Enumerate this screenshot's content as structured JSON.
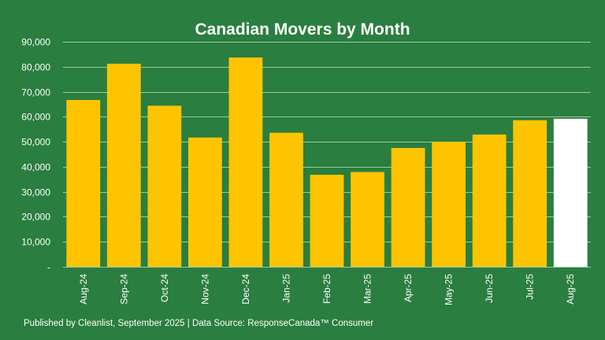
{
  "chart_data": {
    "type": "bar",
    "title": "Canadian Movers by Month",
    "xlabel": "",
    "ylabel": "",
    "categories": [
      "Aug-24",
      "Sep-24",
      "Oct-24",
      "Nov-24",
      "Dec-24",
      "Jan-25",
      "Feb-25",
      "Mar-25",
      "Apr-25",
      "May-25",
      "Jun-25",
      "Jul-25",
      "Aug-25"
    ],
    "values": [
      66700,
      81200,
      64400,
      51700,
      83700,
      53600,
      36800,
      37900,
      47500,
      50000,
      52900,
      58600,
      59200
    ],
    "ylim": [
      0,
      90000
    ],
    "yticks": [
      0,
      10000,
      20000,
      30000,
      40000,
      50000,
      60000,
      70000,
      80000,
      90000
    ],
    "ytick_labels": [
      "-",
      "10,000",
      "20,000",
      "30,000",
      "40,000",
      "50,000",
      "60,000",
      "70,000",
      "80,000",
      "90,000"
    ],
    "grid": true,
    "legend": "none",
    "colors": {
      "background": "#2a7e3f",
      "bar": "#ffc400",
      "highlight_bar": "#ffffff",
      "gridline": "#9cc7a6",
      "text": "#ffffff"
    },
    "highlight_index": 12
  },
  "footer": {
    "note": "Published by Cleanlist, September 2025 | Data Source: ResponseCanada™ Consumer"
  }
}
